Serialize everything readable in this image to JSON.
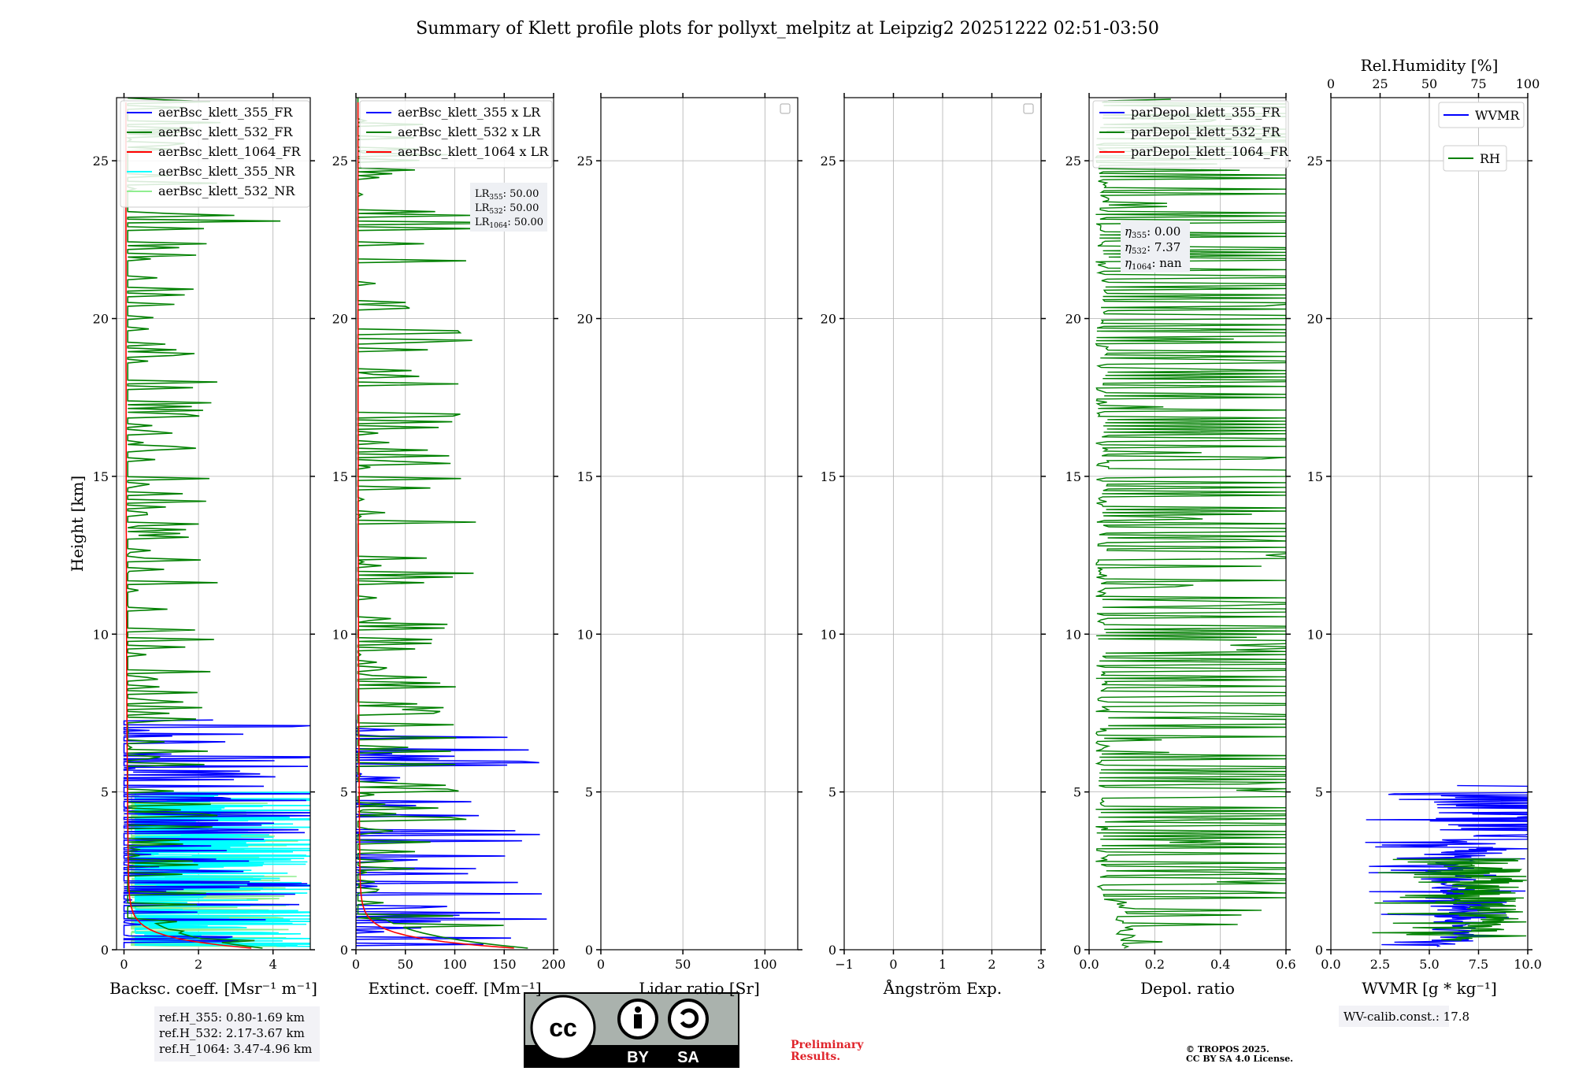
{
  "title": "Summary of Klett profile plots for pollyxt_melpitz at Leipzig2 20251222 02:51-03:50",
  "chart_data": [
    {
      "type": "line",
      "panel": "backscatter",
      "ylabel": "Height [km]",
      "xlabel": "Backsc. coeff. [Msr⁻¹ m⁻¹]",
      "xlim": [
        -0.2,
        5
      ],
      "ylim": [
        0,
        27
      ],
      "xticks": [
        0,
        2,
        4
      ],
      "yticks": [
        0,
        5,
        10,
        15,
        20,
        25
      ],
      "legend": [
        "aerBsc_klett_355_FR",
        "aerBsc_klett_532_FR",
        "aerBsc_klett_1064_FR",
        "aerBsc_klett_355_NR",
        "aerBsc_klett_532_NR"
      ],
      "series_colors": [
        "#0000ff",
        "#008000",
        "#ff0000",
        "#00ffff",
        "#90ee90"
      ]
    },
    {
      "type": "line",
      "panel": "extinction",
      "xlabel": "Extinct. coeff. [Mm⁻¹]",
      "xlim": [
        0,
        200
      ],
      "ylim": [
        0,
        27
      ],
      "xticks": [
        0,
        50,
        100,
        150,
        200
      ],
      "yticks": [
        0,
        5,
        10,
        15,
        20,
        25
      ],
      "legend": [
        "aerBsc_klett_355 x LR",
        "aerBsc_klett_532 x LR",
        "aerBsc_klett_1064 x LR"
      ],
      "series_colors": [
        "#0000ff",
        "#008000",
        "#ff0000"
      ],
      "annotation": {
        "LR355": "50.00",
        "LR532": "50.00",
        "LR1064": "50.00"
      }
    },
    {
      "type": "line",
      "panel": "lidar_ratio",
      "xlabel": "Lidar ratio [Sr]",
      "xlim": [
        0,
        120
      ],
      "ylim": [
        0,
        27
      ],
      "xticks": [
        0,
        50,
        100
      ],
      "yticks": [
        0,
        5,
        10,
        15,
        20,
        25
      ],
      "legend": []
    },
    {
      "type": "line",
      "panel": "angstrom",
      "xlabel": "Ångström Exp.",
      "xlim": [
        -1,
        3
      ],
      "ylim": [
        0,
        27
      ],
      "xticks": [
        -1,
        0,
        1,
        2,
        3
      ],
      "xtick_labels": [
        "−1",
        "0",
        "1",
        "2",
        "3"
      ],
      "yticks": [
        0,
        5,
        10,
        15,
        20,
        25
      ],
      "legend": []
    },
    {
      "type": "line",
      "panel": "depolarization",
      "xlabel": "Depol. ratio",
      "xlim": [
        0,
        0.6
      ],
      "ylim": [
        0,
        27
      ],
      "xticks": [
        0,
        0.2,
        0.4,
        0.6
      ],
      "xtick_labels": [
        "0.0",
        "0.2",
        "0.4",
        "0.6"
      ],
      "yticks": [
        0,
        5,
        10,
        15,
        20,
        25
      ],
      "legend": [
        "parDepol_klett_355_FR",
        "parDepol_klett_532_FR",
        "parDepol_klett_1064_FR"
      ],
      "series_colors": [
        "#0000ff",
        "#008000",
        "#ff0000"
      ],
      "annotation": {
        "eta355": "0.00",
        "eta532": "7.37",
        "eta1064": "nan"
      }
    },
    {
      "type": "line",
      "panel": "water_vapor",
      "xlabel": "WVMR [g * kg⁻¹]",
      "top_xlabel": "Rel.Humidity [%]",
      "xlim": [
        0,
        10
      ],
      "top_xlim": [
        0,
        100
      ],
      "ylim": [
        0,
        27
      ],
      "xticks": [
        0,
        2.5,
        5,
        7.5,
        10
      ],
      "xtick_labels": [
        "0.0",
        "2.5",
        "5.0",
        "7.5",
        "10.0"
      ],
      "top_xticks": [
        0,
        25,
        50,
        75,
        100
      ],
      "yticks": [
        0,
        5,
        10,
        15,
        20,
        25
      ],
      "legend": [
        "WVMR",
        "RH"
      ],
      "series_colors": [
        "#0000ff",
        "#008000"
      ]
    }
  ],
  "refbox": {
    "line1": "ref.H_355: 0.80-1.69 km",
    "line2": "ref.H_532: 2.17-3.67 km",
    "line3": "ref.H_1064: 3.47-4.96 km"
  },
  "wvcalib": "WV-calib.const.: 17.8",
  "logo": {
    "cc": "cc",
    "by": "BY",
    "sa": "SA"
  },
  "preliminary": {
    "line1": "Preliminary",
    "line2": "Results."
  },
  "copyright": {
    "line1": "© TROPOS 2025.",
    "line2": "CC BY SA 4.0 License."
  }
}
